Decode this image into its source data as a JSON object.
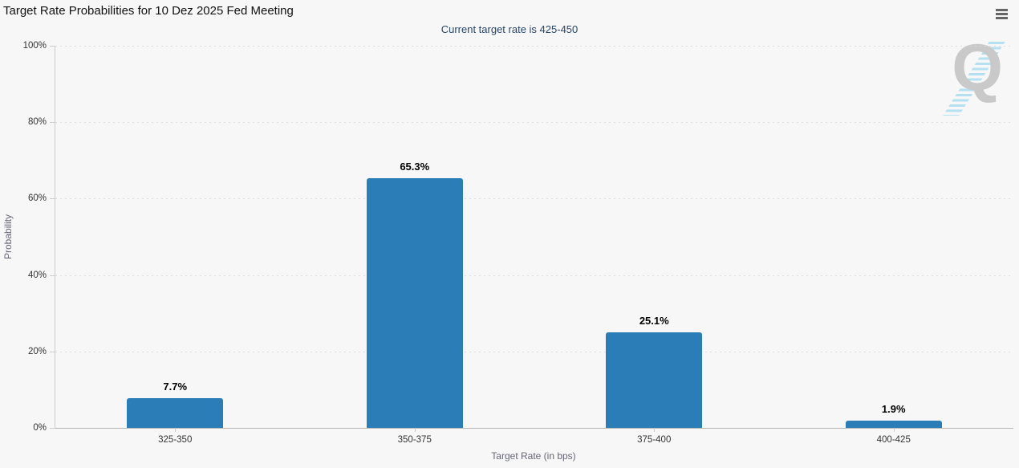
{
  "header": {
    "title": "Target Rate Probabilities for 10 Dez 2025 Fed Meeting",
    "subtitle": "Current target rate is 425-450",
    "menu_icon": "hamburger-menu-icon"
  },
  "watermark": {
    "letter": "Q",
    "description": "gray Q logo with diagonal light-blue stripe band"
  },
  "colors": {
    "background": "#f7f7f7",
    "bar": "#2a7db6",
    "subtitle_text": "#27466b",
    "axis_text": "#333333",
    "axis_title_text": "#666677",
    "gridline": "#dcdcdc",
    "axis_line": "#cccccc",
    "menu_icon": "#666666",
    "watermark_gray": "#c9c9c9",
    "watermark_blue": "#a9dcf0"
  },
  "chart_data": {
    "type": "bar",
    "title": "Target Rate Probabilities for 10 Dez 2025 Fed Meeting",
    "subtitle": "Current target rate is 425-450",
    "categories": [
      "325-350",
      "350-375",
      "375-400",
      "400-425"
    ],
    "values": [
      7.7,
      65.3,
      25.1,
      1.9
    ],
    "value_labels": [
      "7.7%",
      "65.3%",
      "25.1%",
      "1.9%"
    ],
    "xlabel": "Target Rate (in bps)",
    "ylabel": "Probability",
    "ylim": [
      0,
      100
    ],
    "ytick_labels": [
      "0%",
      "20%",
      "40%",
      "60%",
      "80%",
      "100%"
    ],
    "grid": "horizontal dotted",
    "legend": "none",
    "bar_color": "#2a7db6"
  }
}
